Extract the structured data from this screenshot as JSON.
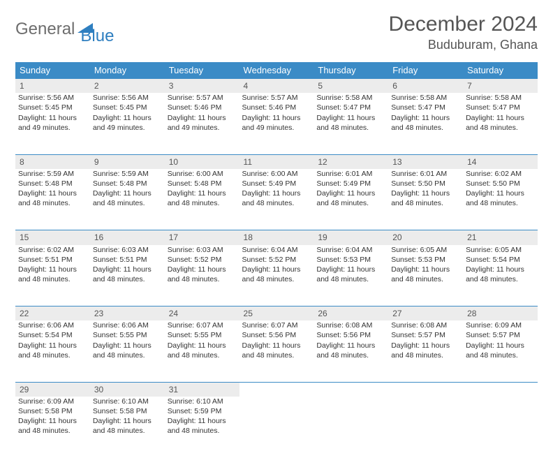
{
  "logo": {
    "part1": "General",
    "part2": "Blue"
  },
  "title": "December 2024",
  "location": "Buduburam, Ghana",
  "colors": {
    "header_bg": "#3b8bc6",
    "header_text": "#ffffff",
    "daynum_bg": "#ececec",
    "border": "#3b8bc6",
    "logo_gray": "#6d6d6d",
    "logo_blue": "#2f7fc0"
  },
  "weekdays": [
    "Sunday",
    "Monday",
    "Tuesday",
    "Wednesday",
    "Thursday",
    "Friday",
    "Saturday"
  ],
  "weeks": [
    [
      {
        "num": "1",
        "sunrise": "Sunrise: 5:56 AM",
        "sunset": "Sunset: 5:45 PM",
        "daylight": "Daylight: 11 hours and 49 minutes."
      },
      {
        "num": "2",
        "sunrise": "Sunrise: 5:56 AM",
        "sunset": "Sunset: 5:45 PM",
        "daylight": "Daylight: 11 hours and 49 minutes."
      },
      {
        "num": "3",
        "sunrise": "Sunrise: 5:57 AM",
        "sunset": "Sunset: 5:46 PM",
        "daylight": "Daylight: 11 hours and 49 minutes."
      },
      {
        "num": "4",
        "sunrise": "Sunrise: 5:57 AM",
        "sunset": "Sunset: 5:46 PM",
        "daylight": "Daylight: 11 hours and 49 minutes."
      },
      {
        "num": "5",
        "sunrise": "Sunrise: 5:58 AM",
        "sunset": "Sunset: 5:47 PM",
        "daylight": "Daylight: 11 hours and 48 minutes."
      },
      {
        "num": "6",
        "sunrise": "Sunrise: 5:58 AM",
        "sunset": "Sunset: 5:47 PM",
        "daylight": "Daylight: 11 hours and 48 minutes."
      },
      {
        "num": "7",
        "sunrise": "Sunrise: 5:58 AM",
        "sunset": "Sunset: 5:47 PM",
        "daylight": "Daylight: 11 hours and 48 minutes."
      }
    ],
    [
      {
        "num": "8",
        "sunrise": "Sunrise: 5:59 AM",
        "sunset": "Sunset: 5:48 PM",
        "daylight": "Daylight: 11 hours and 48 minutes."
      },
      {
        "num": "9",
        "sunrise": "Sunrise: 5:59 AM",
        "sunset": "Sunset: 5:48 PM",
        "daylight": "Daylight: 11 hours and 48 minutes."
      },
      {
        "num": "10",
        "sunrise": "Sunrise: 6:00 AM",
        "sunset": "Sunset: 5:48 PM",
        "daylight": "Daylight: 11 hours and 48 minutes."
      },
      {
        "num": "11",
        "sunrise": "Sunrise: 6:00 AM",
        "sunset": "Sunset: 5:49 PM",
        "daylight": "Daylight: 11 hours and 48 minutes."
      },
      {
        "num": "12",
        "sunrise": "Sunrise: 6:01 AM",
        "sunset": "Sunset: 5:49 PM",
        "daylight": "Daylight: 11 hours and 48 minutes."
      },
      {
        "num": "13",
        "sunrise": "Sunrise: 6:01 AM",
        "sunset": "Sunset: 5:50 PM",
        "daylight": "Daylight: 11 hours and 48 minutes."
      },
      {
        "num": "14",
        "sunrise": "Sunrise: 6:02 AM",
        "sunset": "Sunset: 5:50 PM",
        "daylight": "Daylight: 11 hours and 48 minutes."
      }
    ],
    [
      {
        "num": "15",
        "sunrise": "Sunrise: 6:02 AM",
        "sunset": "Sunset: 5:51 PM",
        "daylight": "Daylight: 11 hours and 48 minutes."
      },
      {
        "num": "16",
        "sunrise": "Sunrise: 6:03 AM",
        "sunset": "Sunset: 5:51 PM",
        "daylight": "Daylight: 11 hours and 48 minutes."
      },
      {
        "num": "17",
        "sunrise": "Sunrise: 6:03 AM",
        "sunset": "Sunset: 5:52 PM",
        "daylight": "Daylight: 11 hours and 48 minutes."
      },
      {
        "num": "18",
        "sunrise": "Sunrise: 6:04 AM",
        "sunset": "Sunset: 5:52 PM",
        "daylight": "Daylight: 11 hours and 48 minutes."
      },
      {
        "num": "19",
        "sunrise": "Sunrise: 6:04 AM",
        "sunset": "Sunset: 5:53 PM",
        "daylight": "Daylight: 11 hours and 48 minutes."
      },
      {
        "num": "20",
        "sunrise": "Sunrise: 6:05 AM",
        "sunset": "Sunset: 5:53 PM",
        "daylight": "Daylight: 11 hours and 48 minutes."
      },
      {
        "num": "21",
        "sunrise": "Sunrise: 6:05 AM",
        "sunset": "Sunset: 5:54 PM",
        "daylight": "Daylight: 11 hours and 48 minutes."
      }
    ],
    [
      {
        "num": "22",
        "sunrise": "Sunrise: 6:06 AM",
        "sunset": "Sunset: 5:54 PM",
        "daylight": "Daylight: 11 hours and 48 minutes."
      },
      {
        "num": "23",
        "sunrise": "Sunrise: 6:06 AM",
        "sunset": "Sunset: 5:55 PM",
        "daylight": "Daylight: 11 hours and 48 minutes."
      },
      {
        "num": "24",
        "sunrise": "Sunrise: 6:07 AM",
        "sunset": "Sunset: 5:55 PM",
        "daylight": "Daylight: 11 hours and 48 minutes."
      },
      {
        "num": "25",
        "sunrise": "Sunrise: 6:07 AM",
        "sunset": "Sunset: 5:56 PM",
        "daylight": "Daylight: 11 hours and 48 minutes."
      },
      {
        "num": "26",
        "sunrise": "Sunrise: 6:08 AM",
        "sunset": "Sunset: 5:56 PM",
        "daylight": "Daylight: 11 hours and 48 minutes."
      },
      {
        "num": "27",
        "sunrise": "Sunrise: 6:08 AM",
        "sunset": "Sunset: 5:57 PM",
        "daylight": "Daylight: 11 hours and 48 minutes."
      },
      {
        "num": "28",
        "sunrise": "Sunrise: 6:09 AM",
        "sunset": "Sunset: 5:57 PM",
        "daylight": "Daylight: 11 hours and 48 minutes."
      }
    ],
    [
      {
        "num": "29",
        "sunrise": "Sunrise: 6:09 AM",
        "sunset": "Sunset: 5:58 PM",
        "daylight": "Daylight: 11 hours and 48 minutes."
      },
      {
        "num": "30",
        "sunrise": "Sunrise: 6:10 AM",
        "sunset": "Sunset: 5:58 PM",
        "daylight": "Daylight: 11 hours and 48 minutes."
      },
      {
        "num": "31",
        "sunrise": "Sunrise: 6:10 AM",
        "sunset": "Sunset: 5:59 PM",
        "daylight": "Daylight: 11 hours and 48 minutes."
      },
      null,
      null,
      null,
      null
    ]
  ]
}
